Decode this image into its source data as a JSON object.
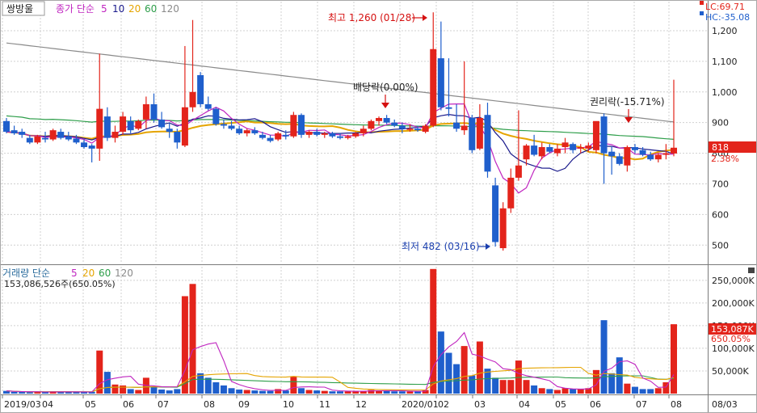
{
  "colors": {
    "up": "#e3241b",
    "down": "#1f5fcc",
    "ma5": "#c026c0",
    "ma10": "#1a1a8c",
    "ma20": "#e5a400",
    "ma60": "#2e9e4a",
    "ma120": "#8a8a8a",
    "grid": "#d0d0d0",
    "axis_text": "#222222",
    "annot_red": "#d51010",
    "annot_blue": "#1b3fae"
  },
  "price_panel": {
    "stock_name": "쌍방울",
    "legend_prefix": "종가 단순",
    "ma_labels": [
      "5",
      "10",
      "20",
      "60",
      "120"
    ],
    "lc_label": "LC:69.71",
    "hc_label": "HC:-35.08",
    "current_price_label": "818",
    "current_change_label": "2.38%",
    "annotations": {
      "high": "최고 1,260 (01/28)",
      "low": "최저 482 (03/16)",
      "dividend": "배당락(0.00%)",
      "rights": "권리락(-15.71%)"
    }
  },
  "volume_panel": {
    "legend_prefix": "거래량 단순",
    "ma_labels": [
      "5",
      "20",
      "60",
      "120"
    ],
    "current_volume": "153,086,526주(650.05%)",
    "current_volume_label": "153,087K",
    "current_volume_pct": "650.05%"
  },
  "x_axis": {
    "labels": [
      "2019/03",
      "04",
      "05",
      "06",
      "07",
      "08",
      "09",
      "10",
      "11",
      "12",
      "2020/01",
      "02",
      "03",
      "04",
      "05",
      "06",
      "07",
      "08"
    ],
    "corner_label": "08/03"
  },
  "chart_data": [
    {
      "type": "candlestick",
      "title": "쌍방울",
      "y_ticks": [
        1200,
        1100,
        1000,
        900,
        800,
        700,
        600,
        500
      ],
      "y_tick_labels": [
        "1,200",
        "1,100",
        "1,000",
        "900",
        "800",
        "700",
        "600",
        "500"
      ],
      "ylim": [
        440,
        1295
      ],
      "candles": [
        {
          "o": 905,
          "h": 915,
          "l": 865,
          "c": 870
        },
        {
          "o": 875,
          "h": 890,
          "l": 860,
          "c": 865
        },
        {
          "o": 870,
          "h": 880,
          "l": 850,
          "c": 860
        },
        {
          "o": 850,
          "h": 860,
          "l": 830,
          "c": 835
        },
        {
          "o": 835,
          "h": 860,
          "l": 830,
          "c": 855
        },
        {
          "o": 850,
          "h": 870,
          "l": 835,
          "c": 845
        },
        {
          "o": 845,
          "h": 880,
          "l": 840,
          "c": 875
        },
        {
          "o": 870,
          "h": 880,
          "l": 845,
          "c": 850
        },
        {
          "o": 855,
          "h": 870,
          "l": 840,
          "c": 845
        },
        {
          "o": 848,
          "h": 860,
          "l": 830,
          "c": 835
        },
        {
          "o": 835,
          "h": 845,
          "l": 815,
          "c": 820
        },
        {
          "o": 825,
          "h": 830,
          "l": 770,
          "c": 815
        },
        {
          "o": 815,
          "h": 1125,
          "l": 775,
          "c": 945
        },
        {
          "o": 920,
          "h": 950,
          "l": 840,
          "c": 850
        },
        {
          "o": 850,
          "h": 890,
          "l": 835,
          "c": 870
        },
        {
          "o": 870,
          "h": 935,
          "l": 860,
          "c": 920
        },
        {
          "o": 905,
          "h": 920,
          "l": 865,
          "c": 875
        },
        {
          "o": 880,
          "h": 910,
          "l": 875,
          "c": 905
        },
        {
          "o": 910,
          "h": 985,
          "l": 880,
          "c": 960
        },
        {
          "o": 960,
          "h": 995,
          "l": 900,
          "c": 910
        },
        {
          "o": 910,
          "h": 935,
          "l": 880,
          "c": 885
        },
        {
          "o": 880,
          "h": 900,
          "l": 850,
          "c": 870
        },
        {
          "o": 870,
          "h": 880,
          "l": 815,
          "c": 835
        },
        {
          "o": 825,
          "h": 1150,
          "l": 820,
          "c": 950
        },
        {
          "o": 950,
          "h": 1235,
          "l": 935,
          "c": 1000
        },
        {
          "o": 1055,
          "h": 1065,
          "l": 950,
          "c": 960
        },
        {
          "o": 960,
          "h": 985,
          "l": 940,
          "c": 945
        },
        {
          "o": 945,
          "h": 950,
          "l": 890,
          "c": 895
        },
        {
          "o": 895,
          "h": 910,
          "l": 880,
          "c": 890
        },
        {
          "o": 890,
          "h": 905,
          "l": 875,
          "c": 880
        },
        {
          "o": 880,
          "h": 890,
          "l": 860,
          "c": 865
        },
        {
          "o": 865,
          "h": 880,
          "l": 855,
          "c": 875
        },
        {
          "o": 875,
          "h": 885,
          "l": 860,
          "c": 865
        },
        {
          "o": 860,
          "h": 870,
          "l": 845,
          "c": 850
        },
        {
          "o": 850,
          "h": 860,
          "l": 835,
          "c": 840
        },
        {
          "o": 845,
          "h": 870,
          "l": 840,
          "c": 865
        },
        {
          "o": 860,
          "h": 875,
          "l": 845,
          "c": 855
        },
        {
          "o": 855,
          "h": 935,
          "l": 850,
          "c": 925
        },
        {
          "o": 925,
          "h": 930,
          "l": 850,
          "c": 860
        },
        {
          "o": 860,
          "h": 875,
          "l": 850,
          "c": 870
        },
        {
          "o": 870,
          "h": 880,
          "l": 855,
          "c": 860
        },
        {
          "o": 860,
          "h": 870,
          "l": 850,
          "c": 865
        },
        {
          "o": 865,
          "h": 870,
          "l": 850,
          "c": 855
        },
        {
          "o": 855,
          "h": 865,
          "l": 845,
          "c": 850
        },
        {
          "o": 850,
          "h": 860,
          "l": 845,
          "c": 855
        },
        {
          "o": 855,
          "h": 870,
          "l": 850,
          "c": 865
        },
        {
          "o": 865,
          "h": 890,
          "l": 855,
          "c": 880
        },
        {
          "o": 880,
          "h": 910,
          "l": 875,
          "c": 905
        },
        {
          "o": 905,
          "h": 920,
          "l": 890,
          "c": 915
        },
        {
          "o": 915,
          "h": 925,
          "l": 895,
          "c": 900
        },
        {
          "o": 900,
          "h": 910,
          "l": 885,
          "c": 890
        },
        {
          "o": 890,
          "h": 900,
          "l": 865,
          "c": 880
        },
        {
          "o": 880,
          "h": 895,
          "l": 870,
          "c": 880
        },
        {
          "o": 880,
          "h": 890,
          "l": 870,
          "c": 875
        },
        {
          "o": 870,
          "h": 895,
          "l": 865,
          "c": 890
        },
        {
          "o": 890,
          "h": 1260,
          "l": 885,
          "c": 1140
        },
        {
          "o": 1110,
          "h": 1230,
          "l": 940,
          "c": 950
        },
        {
          "o": 950,
          "h": 1110,
          "l": 920,
          "c": 945
        },
        {
          "o": 900,
          "h": 960,
          "l": 870,
          "c": 880
        },
        {
          "o": 875,
          "h": 1100,
          "l": 860,
          "c": 890
        },
        {
          "o": 915,
          "h": 925,
          "l": 800,
          "c": 810
        },
        {
          "o": 815,
          "h": 960,
          "l": 810,
          "c": 915
        },
        {
          "o": 925,
          "h": 965,
          "l": 720,
          "c": 740
        },
        {
          "o": 695,
          "h": 720,
          "l": 495,
          "c": 510
        },
        {
          "o": 490,
          "h": 640,
          "l": 482,
          "c": 620
        },
        {
          "o": 620,
          "h": 750,
          "l": 605,
          "c": 720
        },
        {
          "o": 720,
          "h": 940,
          "l": 710,
          "c": 760
        },
        {
          "o": 780,
          "h": 830,
          "l": 760,
          "c": 825
        },
        {
          "o": 825,
          "h": 860,
          "l": 790,
          "c": 795
        },
        {
          "o": 790,
          "h": 835,
          "l": 780,
          "c": 820
        },
        {
          "o": 820,
          "h": 830,
          "l": 800,
          "c": 805
        },
        {
          "o": 800,
          "h": 830,
          "l": 790,
          "c": 815
        },
        {
          "o": 820,
          "h": 850,
          "l": 800,
          "c": 835
        },
        {
          "o": 830,
          "h": 835,
          "l": 800,
          "c": 810
        },
        {
          "o": 815,
          "h": 830,
          "l": 800,
          "c": 820
        },
        {
          "o": 815,
          "h": 835,
          "l": 805,
          "c": 825
        },
        {
          "o": 810,
          "h": 900,
          "l": 800,
          "c": 905
        },
        {
          "o": 920,
          "h": 930,
          "l": 700,
          "c": 800
        },
        {
          "o": 805,
          "h": 820,
          "l": 730,
          "c": 790
        },
        {
          "o": 790,
          "h": 800,
          "l": 760,
          "c": 765
        },
        {
          "o": 760,
          "h": 825,
          "l": 740,
          "c": 820
        },
        {
          "o": 820,
          "h": 830,
          "l": 800,
          "c": 810
        },
        {
          "o": 810,
          "h": 820,
          "l": 790,
          "c": 795
        },
        {
          "o": 795,
          "h": 805,
          "l": 775,
          "c": 780
        },
        {
          "o": 780,
          "h": 800,
          "l": 770,
          "c": 795
        },
        {
          "o": 795,
          "h": 830,
          "l": 780,
          "c": 800
        },
        {
          "o": 799,
          "h": 1040,
          "l": 790,
          "c": 818
        }
      ]
    },
    {
      "type": "bar",
      "title": "거래량",
      "unit": "K",
      "y_ticks": [
        50000,
        100000,
        150000,
        200000,
        250000
      ],
      "y_tick_labels": [
        "50,000K",
        "100,000K",
        "150,000K",
        "200,000K",
        "250,000K"
      ],
      "ylim": [
        0,
        280000
      ],
      "values": [
        6000,
        4000,
        3500,
        3000,
        4000,
        3500,
        5000,
        4000,
        3500,
        3500,
        3000,
        4000,
        95000,
        48000,
        20000,
        18000,
        10000,
        8000,
        35000,
        15000,
        9000,
        7000,
        10000,
        215000,
        242000,
        45000,
        35000,
        25000,
        18000,
        12000,
        9000,
        8000,
        7000,
        6000,
        6000,
        10000,
        7000,
        38000,
        12000,
        8000,
        7000,
        6000,
        5000,
        5000,
        5000,
        5000,
        6000,
        8000,
        7000,
        6000,
        5000,
        5000,
        5000,
        5000,
        8000,
        275000,
        137000,
        90000,
        65000,
        105000,
        40000,
        115000,
        55000,
        35000,
        30000,
        30000,
        73000,
        30000,
        18000,
        12000,
        10000,
        8000,
        12000,
        10000,
        10000,
        12000,
        52000,
        162000,
        45000,
        80000,
        22000,
        15000,
        10000,
        10000,
        12000,
        25000,
        153087
      ]
    }
  ]
}
